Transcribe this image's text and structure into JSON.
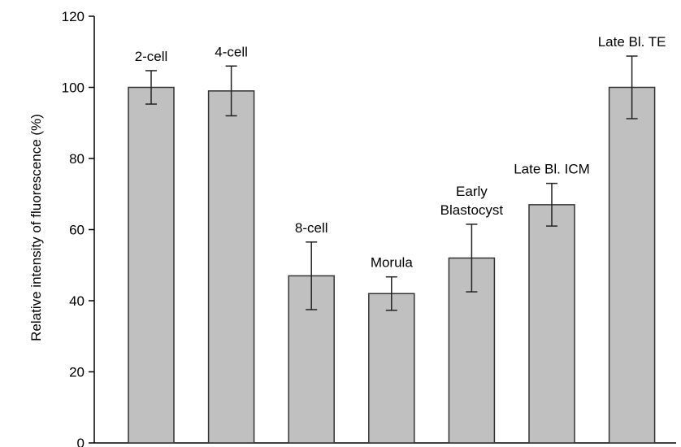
{
  "chart_data": {
    "type": "bar",
    "title": "",
    "xlabel": "",
    "ylabel": "Relative intensity of fluorescence (%)",
    "ylim": [
      0,
      120
    ],
    "yticks": [
      0,
      20,
      40,
      60,
      80,
      100,
      120
    ],
    "grid": false,
    "categories": [
      "2-cell",
      "4-cell",
      "8-cell",
      "Morula",
      "Early Blastocyst",
      "Late Bl. ICM",
      "Late Bl. TE"
    ],
    "category_label_lines": [
      [
        "2-cell"
      ],
      [
        "4-cell"
      ],
      [
        "8-cell"
      ],
      [
        "Morula"
      ],
      [
        "Early",
        "Blastocyst"
      ],
      [
        "Late Bl. ICM"
      ],
      [
        "Late Bl. TE"
      ]
    ],
    "values": [
      100,
      99,
      47,
      42,
      52,
      67,
      100
    ],
    "error": [
      4.7,
      7,
      9.5,
      4.7,
      9.5,
      6,
      8.8
    ],
    "bar_color": "#c0c0c0",
    "edge_color": "#333333"
  }
}
